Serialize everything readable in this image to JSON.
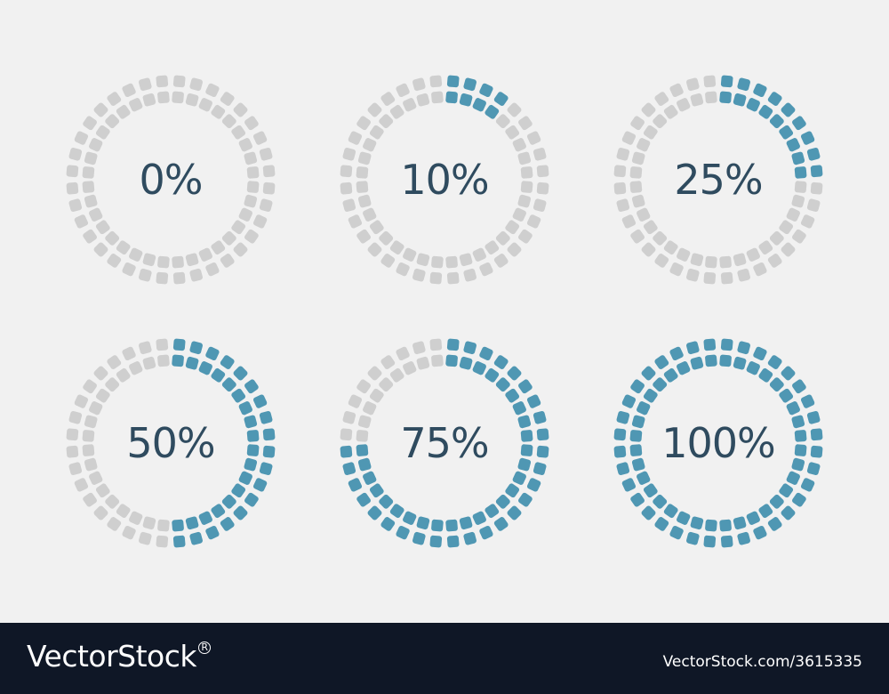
{
  "colors": {
    "background": "#f1f1f1",
    "filled": "#4f97b3",
    "empty": "#cfcfcf",
    "label": "#2f4b5f",
    "footer": "#0f1726"
  },
  "indicators": [
    {
      "label": "0%",
      "value": 0
    },
    {
      "label": "10%",
      "value": 0.1
    },
    {
      "label": "25%",
      "value": 0.25
    },
    {
      "label": "50%",
      "value": 0.5
    },
    {
      "label": "75%",
      "value": 0.75
    },
    {
      "label": "100%",
      "value": 1.0
    }
  ],
  "footer": {
    "logo_text": "VectorStock",
    "registered_mark": "R",
    "image_id": "VectorStock.com/3615335"
  }
}
